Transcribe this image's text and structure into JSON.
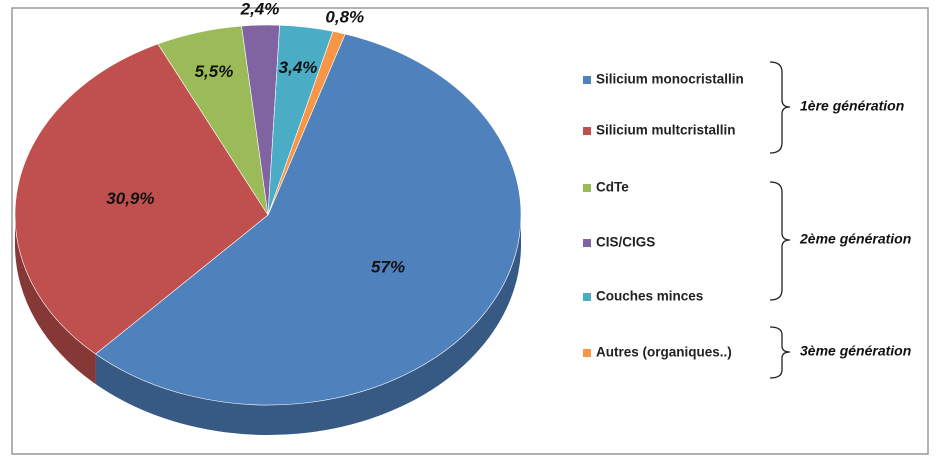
{
  "chart_data": {
    "type": "pie",
    "categories": [
      "Silicium monocristallin",
      "Silicium multcristallin",
      "CdTe",
      "CIS/CIGS",
      "Couches minces",
      "Autres (organiques..)"
    ],
    "values": [
      57,
      30.9,
      5.5,
      2.4,
      3.4,
      0.8
    ],
    "value_labels": [
      "57%",
      "30,9%",
      "5,5%",
      "2,4%",
      "3,4%",
      "0,8%"
    ],
    "colors": [
      "#4f81bd",
      "#c0504d",
      "#9bbb59",
      "#8064a2",
      "#4bacc6",
      "#f79646"
    ],
    "annotations": [
      "1ère génération",
      "2ème génération",
      "3ème génération"
    ]
  }
}
